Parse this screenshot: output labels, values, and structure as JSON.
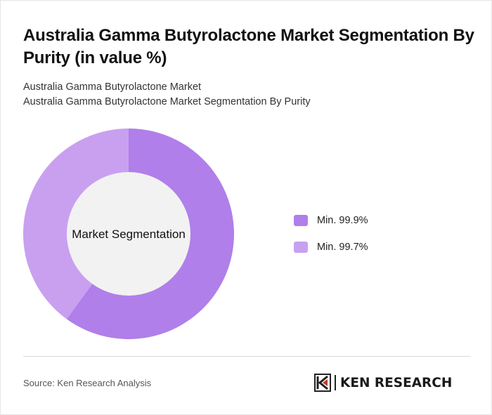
{
  "header": {
    "title": "Australia Gamma Butyrolactone Market Segmentation By Purity (in value %)",
    "subtitle_line1": "Australia Gamma Butyrolactone Market",
    "subtitle_line2": "Australia Gamma Butyrolactone Market Segmentation By Purity"
  },
  "chart_data": {
    "type": "pie",
    "variant": "donut",
    "center_label": "Market Segmentation",
    "categories": [
      "Min. 99.9%",
      "Min. 99.7%"
    ],
    "values": [
      60,
      40
    ],
    "colors": [
      "#b07fea",
      "#c9a0f0"
    ],
    "legend_position": "right"
  },
  "footer": {
    "source": "Source: Ken Research Analysis",
    "logo_text": "KEN RESEARCH",
    "logo_icon": "ken-research-logo-icon"
  }
}
